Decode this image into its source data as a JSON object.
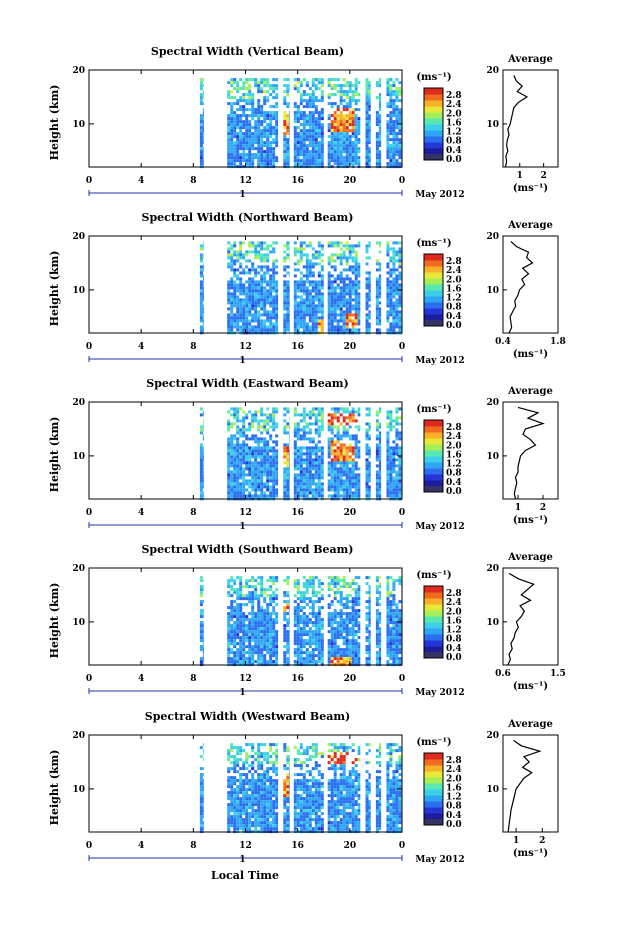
{
  "figure": {
    "xlabel": "Local Time",
    "x_ticks": [
      "0",
      "4",
      "8",
      "12",
      "16",
      "20",
      "0"
    ],
    "day_marker": "1",
    "month_label": "May 2012",
    "y_label": "Height (km)",
    "y_ticks": [
      "20",
      "10"
    ],
    "colorbar_unit": "(ms⁻¹)",
    "colorbar_ticks": [
      "2.8",
      "2.4",
      "2.0",
      "1.6",
      "1.2",
      "0.8",
      "0.4",
      "0.0"
    ],
    "average_title": "Average",
    "average_unit": "(ms⁻¹)",
    "colors": {
      "colormap": [
        "#1c1c9c",
        "#2437d6",
        "#2b6ef0",
        "#2fa6f4",
        "#3cd0e8",
        "#58e8b0",
        "#a6ee5a",
        "#e8e83a",
        "#f7b028",
        "#f06a20",
        "#e02a20"
      ],
      "colorbar_bottom": "#333366"
    }
  },
  "chart_data": [
    {
      "type": "heatmap",
      "title": "Spectral Width (Vertical Beam)",
      "xlabel": "Local Time",
      "ylabel": "Height (km)",
      "xlim": [
        0,
        24
      ],
      "ylim": [
        2,
        20
      ],
      "colorbar": {
        "label": "(ms⁻¹)",
        "range": [
          0,
          2.8
        ]
      },
      "data_periods_hours": [
        [
          8.5,
          8.8
        ],
        [
          10.6,
          14.5
        ],
        [
          14.9,
          15.4
        ],
        [
          15.7,
          18.0
        ],
        [
          18.3,
          20.8
        ],
        [
          21.2,
          21.6
        ],
        [
          22.0,
          22.4
        ],
        [
          22.8,
          24.0
        ]
      ],
      "echo_top_km": 18.5,
      "high_width_regions": [
        {
          "x": [
            14.8,
            15.3
          ],
          "y": [
            8,
            13
          ]
        },
        {
          "x": [
            18.5,
            20.3
          ],
          "y": [
            9,
            13
          ]
        }
      ],
      "average_profile": {
        "xlabel": "(ms⁻¹)",
        "xticks": [
          "1",
          "2"
        ],
        "xlim": [
          0.3,
          2.6
        ],
        "ylim": [
          2,
          20
        ],
        "height_km": [
          2,
          3,
          4,
          5,
          6,
          7,
          8,
          9,
          10,
          11,
          12,
          13,
          14,
          15,
          16,
          17,
          18,
          19
        ],
        "width": [
          0.4,
          0.45,
          0.42,
          0.5,
          0.45,
          0.48,
          0.55,
          0.5,
          0.6,
          0.65,
          0.7,
          0.75,
          0.95,
          1.3,
          0.9,
          1.1,
          0.85,
          0.75
        ]
      }
    },
    {
      "type": "heatmap",
      "title": "Spectral Width (Northward Beam)",
      "xlabel": "Local Time",
      "ylabel": "Height (km)",
      "xlim": [
        0,
        24
      ],
      "ylim": [
        2,
        20
      ],
      "colorbar": {
        "label": "(ms⁻¹)",
        "range": [
          0,
          2.8
        ]
      },
      "data_periods_hours": [
        [
          8.5,
          8.8
        ],
        [
          10.6,
          14.5
        ],
        [
          14.9,
          15.4
        ],
        [
          15.7,
          18.0
        ],
        [
          18.3,
          20.8
        ],
        [
          21.2,
          21.6
        ],
        [
          22.0,
          22.4
        ],
        [
          22.8,
          24.0
        ]
      ],
      "echo_top_km": 19.0,
      "high_width_regions": [
        {
          "x": [
            17.5,
            18.2
          ],
          "y": [
            2,
            5
          ]
        },
        {
          "x": [
            19.5,
            20.5
          ],
          "y": [
            3,
            6
          ]
        }
      ],
      "average_profile": {
        "xlabel": "(ms⁻¹)",
        "xticks": [
          "0.4",
          "1.8"
        ],
        "xlim": [
          0.4,
          1.8
        ],
        "ylim": [
          2,
          20
        ],
        "height_km": [
          2,
          3,
          4,
          5,
          6,
          7,
          8,
          9,
          10,
          11,
          12,
          13,
          14,
          15,
          16,
          17,
          18,
          19
        ],
        "width": [
          0.55,
          0.62,
          0.6,
          0.58,
          0.65,
          0.72,
          0.7,
          0.78,
          0.82,
          0.95,
          0.88,
          1.05,
          0.9,
          1.15,
          1.0,
          1.05,
          0.75,
          0.6
        ]
      }
    },
    {
      "type": "heatmap",
      "title": "Spectral Width (Eastward Beam)",
      "xlabel": "Local Time",
      "ylabel": "Height (km)",
      "xlim": [
        0,
        24
      ],
      "ylim": [
        2,
        20
      ],
      "colorbar": {
        "label": "(ms⁻¹)",
        "range": [
          0,
          2.8
        ]
      },
      "data_periods_hours": [
        [
          8.5,
          8.8
        ],
        [
          10.6,
          14.5
        ],
        [
          14.9,
          15.4
        ],
        [
          15.7,
          18.0
        ],
        [
          18.3,
          20.8
        ],
        [
          21.2,
          21.6
        ],
        [
          22.0,
          22.4
        ],
        [
          22.8,
          24.0
        ]
      ],
      "echo_top_km": 19.0,
      "high_width_regions": [
        {
          "x": [
            14.8,
            15.3
          ],
          "y": [
            8,
            12
          ]
        },
        {
          "x": [
            18.5,
            20.3
          ],
          "y": [
            9,
            13
          ]
        },
        {
          "x": [
            18.3,
            20.5
          ],
          "y": [
            16,
            18
          ]
        }
      ],
      "average_profile": {
        "xlabel": "(ms⁻¹)",
        "xticks": [
          "1",
          "2"
        ],
        "xlim": [
          0.4,
          2.6
        ],
        "ylim": [
          2,
          20
        ],
        "height_km": [
          2,
          3,
          4,
          5,
          6,
          7,
          8,
          9,
          10,
          11,
          12,
          13,
          14,
          15,
          16,
          17,
          18,
          19
        ],
        "width": [
          0.9,
          0.85,
          0.9,
          0.95,
          0.9,
          1.0,
          1.0,
          1.05,
          1.1,
          1.3,
          1.7,
          1.5,
          1.2,
          1.3,
          2.0,
          1.4,
          1.8,
          1.0
        ]
      }
    },
    {
      "type": "heatmap",
      "title": "Spectral Width (Southward Beam)",
      "xlabel": "Local Time",
      "ylabel": "Height (km)",
      "xlim": [
        0,
        24
      ],
      "ylim": [
        2,
        20
      ],
      "colorbar": {
        "label": "(ms⁻¹)",
        "range": [
          0,
          2.8
        ]
      },
      "data_periods_hours": [
        [
          8.5,
          8.8
        ],
        [
          10.6,
          14.5
        ],
        [
          14.9,
          15.4
        ],
        [
          15.7,
          18.0
        ],
        [
          18.3,
          20.8
        ],
        [
          21.2,
          21.6
        ],
        [
          22.0,
          22.4
        ],
        [
          22.8,
          24.0
        ]
      ],
      "echo_top_km": 18.5,
      "high_width_regions": [
        {
          "x": [
            14.8,
            15.3
          ],
          "y": [
            12,
            14
          ]
        },
        {
          "x": [
            18.4,
            20.0
          ],
          "y": [
            2,
            4
          ]
        }
      ],
      "average_profile": {
        "xlabel": "(ms⁻¹)",
        "xticks": [
          "0.6",
          "1.5"
        ],
        "xlim": [
          0.6,
          1.5
        ],
        "ylim": [
          2,
          20
        ],
        "height_km": [
          2,
          3,
          4,
          5,
          6,
          7,
          8,
          9,
          10,
          11,
          12,
          13,
          14,
          15,
          16,
          17,
          18,
          19
        ],
        "width": [
          0.68,
          0.72,
          0.7,
          0.75,
          0.73,
          0.78,
          0.8,
          0.85,
          0.82,
          0.9,
          0.95,
          0.88,
          1.05,
          0.9,
          1.0,
          1.1,
          0.85,
          0.7
        ]
      }
    },
    {
      "type": "heatmap",
      "title": "Spectral Width (Westward Beam)",
      "xlabel": "Local Time",
      "ylabel": "Height (km)",
      "xlim": [
        0,
        24
      ],
      "ylim": [
        2,
        20
      ],
      "colorbar": {
        "label": "(ms⁻¹)",
        "range": [
          0,
          2.8
        ]
      },
      "data_periods_hours": [
        [
          8.5,
          8.8
        ],
        [
          10.6,
          14.5
        ],
        [
          14.9,
          15.4
        ],
        [
          15.7,
          18.0
        ],
        [
          18.3,
          20.8
        ],
        [
          21.2,
          21.6
        ],
        [
          22.0,
          22.4
        ],
        [
          22.8,
          24.0
        ]
      ],
      "echo_top_km": 18.5,
      "high_width_regions": [
        {
          "x": [
            14.8,
            15.3
          ],
          "y": [
            9,
            13
          ]
        },
        {
          "x": [
            18.3,
            20.5
          ],
          "y": [
            15,
            17
          ]
        }
      ],
      "average_profile": {
        "xlabel": "(ms⁻¹)",
        "xticks": [
          "1",
          "2"
        ],
        "xlim": [
          0.5,
          2.6
        ],
        "ylim": [
          2,
          20
        ],
        "height_km": [
          2,
          3,
          4,
          5,
          6,
          7,
          8,
          9,
          10,
          11,
          12,
          13,
          14,
          15,
          16,
          17,
          18,
          19
        ],
        "width": [
          0.7,
          0.72,
          0.75,
          0.78,
          0.8,
          0.85,
          0.9,
          0.95,
          1.0,
          1.15,
          1.3,
          1.6,
          1.25,
          1.5,
          1.3,
          1.9,
          1.2,
          0.9
        ]
      }
    }
  ]
}
